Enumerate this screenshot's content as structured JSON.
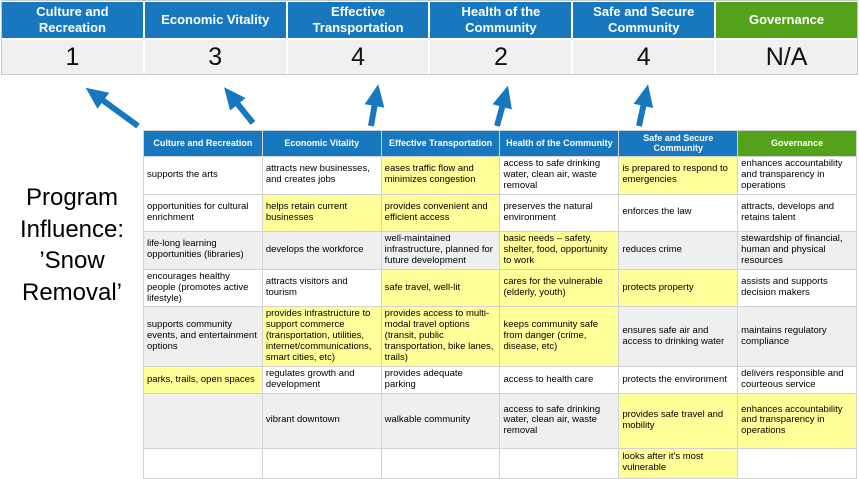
{
  "colors": {
    "header_blue": "#1878BF",
    "header_green": "#54A21A",
    "arrow": "#1878BF",
    "highlight": "#FFFF99",
    "score_band": "#F0F0F0"
  },
  "banner": {
    "categories": [
      {
        "label": "Culture and Recreation",
        "score": "1"
      },
      {
        "label": "Economic Vitality",
        "score": "3"
      },
      {
        "label": "Effective Transportation",
        "score": "4"
      },
      {
        "label": "Health of the Community",
        "score": "2"
      },
      {
        "label": "Safe and Secure Community",
        "score": "4"
      },
      {
        "label": "Governance",
        "score": "N/A"
      }
    ]
  },
  "program_label": "Program Influence: ’Snow Removal’",
  "matrix": {
    "headers": [
      "Culture and Recreation",
      "Economic Vitality",
      "Effective Transportation",
      "Health of the Community",
      "Safe and Secure Community",
      "Governance"
    ],
    "rows": [
      [
        {
          "t": "supports the arts",
          "hl": false
        },
        {
          "t": "attracts new businesses, and creates jobs",
          "hl": false
        },
        {
          "t": "eases traffic flow and minimizes congestion",
          "hl": true
        },
        {
          "t": "access to safe drinking water, clean air, waste removal",
          "hl": false
        },
        {
          "t": "is prepared to respond to emergencies",
          "hl": true
        },
        {
          "t": "enhances accountability and transparency in operations",
          "hl": false
        }
      ],
      [
        {
          "t": "opportunities for cultural enrichment",
          "hl": false
        },
        {
          "t": "helps retain current businesses",
          "hl": true
        },
        {
          "t": "provides convenient and efficient access",
          "hl": true
        },
        {
          "t": "preserves the natural environment",
          "hl": false
        },
        {
          "t": "enforces the law",
          "hl": false
        },
        {
          "t": "attracts, develops and retains talent",
          "hl": false
        }
      ],
      [
        {
          "t": "life-long learning opportunities (libraries)",
          "hl": false
        },
        {
          "t": "develops the workforce",
          "hl": false
        },
        {
          "t": "well-maintained infrastructure, planned for future development",
          "hl": false
        },
        {
          "t": "basic needs – safety, shelter, food, opportunity to work",
          "hl": true
        },
        {
          "t": "reduces crime",
          "hl": false
        },
        {
          "t": "stewardship of financial, human and physical resources",
          "hl": false
        }
      ],
      [
        {
          "t": "encourages healthy people (promotes active lifestyle)",
          "hl": false
        },
        {
          "t": "attracts visitors and tourism",
          "hl": false
        },
        {
          "t": "safe travel, well-lit",
          "hl": true
        },
        {
          "t": "cares for the vulnerable (elderly, youth)",
          "hl": true
        },
        {
          "t": "protects property",
          "hl": true
        },
        {
          "t": "assists and supports decision makers",
          "hl": false
        }
      ],
      [
        {
          "t": "supports community events, and entertainment options",
          "hl": false
        },
        {
          "t": "provides infrastructure to support commerce (transportation, utilities, internet/communications, smart cities, etc)",
          "hl": true
        },
        {
          "t": "provides access to multi-modal travel options (transit, public transportation, bike lanes, trails)",
          "hl": true
        },
        {
          "t": "keeps community safe from danger (crime, disease, etc)",
          "hl": true
        },
        {
          "t": "ensures safe air and access to drinking water",
          "hl": false
        },
        {
          "t": "maintains regulatory compliance",
          "hl": false
        }
      ],
      [
        {
          "t": "parks, trails, open spaces",
          "hl": true
        },
        {
          "t": "regulates growth and development",
          "hl": false
        },
        {
          "t": "provides adequate parking",
          "hl": false
        },
        {
          "t": "access to health care",
          "hl": false
        },
        {
          "t": "protects the environment",
          "hl": false
        },
        {
          "t": "delivers responsible and courteous service",
          "hl": false
        }
      ],
      [
        {
          "t": "",
          "hl": false
        },
        {
          "t": "vibrant downtown",
          "hl": false
        },
        {
          "t": "walkable community",
          "hl": false
        },
        {
          "t": "access to safe drinking water, clean air, waste removal",
          "hl": false
        },
        {
          "t": "provides safe travel and mobility",
          "hl": true
        },
        {
          "t": "enhances accountability and transparency in operations",
          "hl": true
        }
      ],
      [
        {
          "t": "",
          "hl": false
        },
        {
          "t": "",
          "hl": false
        },
        {
          "t": "",
          "hl": false
        },
        {
          "t": "",
          "hl": false
        },
        {
          "t": "looks after it's most vulnerable",
          "hl": true
        },
        {
          "t": "",
          "hl": false
        }
      ]
    ]
  }
}
